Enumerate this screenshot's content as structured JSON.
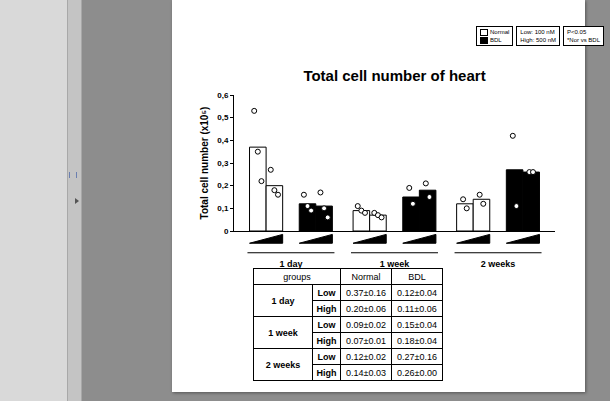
{
  "chart_data": {
    "type": "bar",
    "title": "Total cell number of heart",
    "y_label": "Total cell number (x10⁵)",
    "categories": [
      "1 day",
      "1 week",
      "2 weeks"
    ],
    "doses": [
      "Low",
      "High"
    ],
    "series": [
      {
        "name": "Normal",
        "color": "#ffffff",
        "values": [
          [
            0.37,
            0.2
          ],
          [
            0.09,
            0.07
          ],
          [
            0.12,
            0.14
          ]
        ],
        "points": [
          [
            [
              0.53,
              0.35,
              0.22
            ],
            [
              0.27,
              0.18,
              0.16
            ]
          ],
          [
            [
              0.11,
              0.09,
              0.08
            ],
            [
              0.08,
              0.07,
              0.06
            ]
          ],
          [
            [
              0.14,
              0.1
            ],
            [
              0.16,
              0.12
            ]
          ]
        ]
      },
      {
        "name": "BDL",
        "color": "#000000",
        "values": [
          [
            0.12,
            0.11
          ],
          [
            0.15,
            0.18
          ],
          [
            0.27,
            0.26
          ]
        ],
        "points": [
          [
            [
              0.16,
              0.11,
              0.09
            ],
            [
              0.17,
              0.1,
              0.06
            ]
          ],
          [
            [
              0.19,
              0.12
            ],
            [
              0.21,
              0.15
            ]
          ],
          [
            [
              0.42,
              0.11
            ],
            [
              0.26,
              0.26
            ]
          ]
        ]
      }
    ],
    "ylim": [
      0,
      0.6
    ],
    "yticks": [
      0,
      {
        "value": 0.1,
        "label": "0,1"
      },
      {
        "value": 0.2,
        "label": "0,2"
      },
      {
        "value": 0.3,
        "label": "0,3"
      },
      {
        "value": 0.4,
        "label": "0,4"
      },
      {
        "value": 0.5,
        "label": "0,5"
      },
      {
        "value": 0.6,
        "label": "0,6"
      }
    ],
    "grid": false,
    "annotations": [
      [
        "Low: 100 nM",
        "High: 500 nM"
      ],
      [
        "P<0.05",
        "*Nor vs BDL"
      ]
    ]
  },
  "table": {
    "header": [
      "groups",
      "Normal",
      "BDL"
    ],
    "groups": [
      {
        "label": "1 day",
        "rows": [
          {
            "dose": "Low",
            "cells": [
              "0.37±0.16",
              "0.12±0.04"
            ]
          },
          {
            "dose": "High",
            "cells": [
              "0.20±0.06",
              "0.11±0.06"
            ]
          }
        ]
      },
      {
        "label": "1 week",
        "rows": [
          {
            "dose": "Low",
            "cells": [
              "0.09±0.02",
              "0.15±0.04"
            ]
          },
          {
            "dose": "High",
            "cells": [
              "0.07±0.01",
              "0.18±0.04"
            ]
          }
        ]
      },
      {
        "label": "2 weeks",
        "rows": [
          {
            "dose": "Low",
            "cells": [
              "0.12±0.02",
              "0.27±0.16"
            ]
          },
          {
            "dose": "High",
            "cells": [
              "0.14±0.03",
              "0.26±0.00"
            ]
          }
        ]
      }
    ]
  }
}
